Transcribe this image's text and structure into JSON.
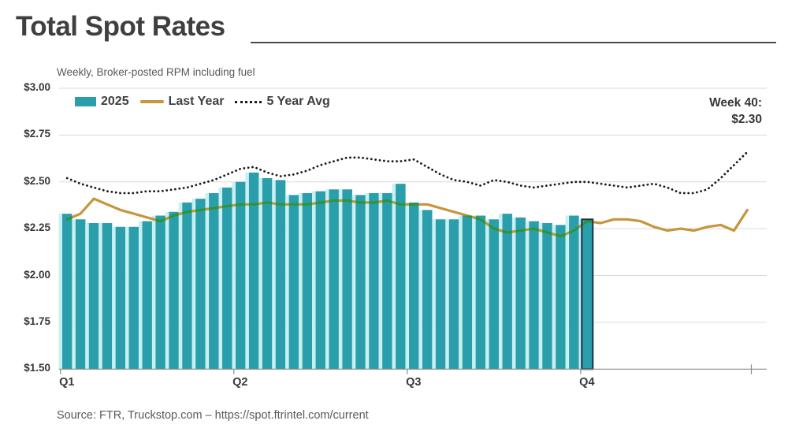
{
  "title": "Total Spot Rates",
  "subtitle": "Weekly, Broker-posted RPM including fuel",
  "annotation": {
    "line1": "Week 40:",
    "line2": "$2.30"
  },
  "source": "Source: FTR, Truckstop.com – https://spot.ftrintel.com/current",
  "colors": {
    "bar_teal": "#2b9eab",
    "bar_halo": "#c6f0f2",
    "highlight_border": "#1b3044",
    "line_orange": "#c6953c",
    "line_dotted": "#1a1a1a",
    "gridline": "#d9d9d9",
    "axis": "#8c8c8c",
    "text_dark": "#3f3f3f",
    "text_mid": "#595959"
  },
  "legend": [
    {
      "label": "2025",
      "type": "bar"
    },
    {
      "label": "Last Year",
      "type": "line"
    },
    {
      "label": "5 Year Avg",
      "type": "dotted"
    }
  ],
  "chart_data": {
    "type": "bar",
    "x_unit": "week",
    "weeks_total": 52,
    "quarter_labels": [
      "Q1",
      "Q2",
      "Q3",
      "Q4"
    ],
    "quarter_start_weeks": [
      1,
      14,
      27,
      40
    ],
    "ylim": [
      1.5,
      3.0
    ],
    "ytick_step": 0.25,
    "yticks": [
      3.0,
      2.75,
      2.5,
      2.25,
      2.0,
      1.75,
      1.5
    ],
    "ytick_labels": [
      "$3.00",
      "$2.75",
      "$2.50",
      "$2.25",
      "$2.00",
      "$1.75",
      "$1.50"
    ],
    "grid": "horizontal",
    "legend_position": "top-left",
    "series": [
      {
        "name": "2025",
        "type": "bar",
        "values": [
          2.33,
          2.3,
          2.28,
          2.28,
          2.26,
          2.26,
          2.29,
          2.32,
          2.34,
          2.39,
          2.41,
          2.44,
          2.47,
          2.5,
          2.55,
          2.52,
          2.51,
          2.43,
          2.44,
          2.45,
          2.46,
          2.46,
          2.43,
          2.44,
          2.44,
          2.49,
          2.39,
          2.35,
          2.3,
          2.3,
          2.32,
          2.32,
          2.3,
          2.33,
          2.31,
          2.29,
          2.28,
          2.27,
          2.32,
          2.3
        ]
      },
      {
        "name": "Last Year",
        "type": "line",
        "values": [
          2.3,
          2.33,
          2.41,
          2.38,
          2.35,
          2.33,
          2.31,
          2.29,
          2.32,
          2.34,
          2.35,
          2.36,
          2.37,
          2.38,
          2.38,
          2.39,
          2.38,
          2.38,
          2.38,
          2.39,
          2.4,
          2.4,
          2.39,
          2.39,
          2.4,
          2.38,
          2.38,
          2.38,
          2.36,
          2.34,
          2.32,
          2.3,
          2.25,
          2.23,
          2.24,
          2.25,
          2.23,
          2.21,
          2.24,
          2.29,
          2.28,
          2.3,
          2.3,
          2.29,
          2.26,
          2.24,
          2.25,
          2.24,
          2.26,
          2.27,
          2.24,
          2.35
        ]
      },
      {
        "name": "5 Year Avg",
        "type": "dotted-line",
        "values": [
          2.52,
          2.49,
          2.47,
          2.45,
          2.44,
          2.44,
          2.45,
          2.45,
          2.46,
          2.47,
          2.49,
          2.51,
          2.54,
          2.57,
          2.58,
          2.55,
          2.53,
          2.54,
          2.56,
          2.59,
          2.61,
          2.63,
          2.63,
          2.62,
          2.61,
          2.61,
          2.62,
          2.58,
          2.54,
          2.51,
          2.5,
          2.48,
          2.51,
          2.5,
          2.48,
          2.47,
          2.48,
          2.49,
          2.5,
          2.5,
          2.49,
          2.48,
          2.47,
          2.48,
          2.49,
          2.47,
          2.44,
          2.44,
          2.46,
          2.52,
          2.59,
          2.66
        ]
      }
    ],
    "highlight": {
      "week": 40,
      "value": 2.3
    }
  }
}
